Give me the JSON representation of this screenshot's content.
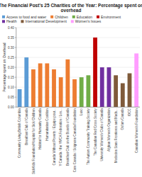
{
  "chart_data": {
    "type": "bar",
    "title": "The Financial Post's 25 Charities of the Year: Percentage spent on overhead",
    "ylabel": "Percentage spent on Overhead",
    "categories": [
      "Community Living British Columbia",
      "Breakfast Club of Canada",
      "SickKids Foundation/Hospital for Sick Children",
      "Habitat for Humanity Canada",
      "Humanitarian Coalition",
      "Canada Without Poverty / Equipe pour...",
      "Y Canada / the YMCA Federation / Les...",
      "Breakfast Club on the Boards of Canada",
      "Care Canada / Soignons Canada Foundation",
      "Luso",
      "The Autism Community Training Society",
      "The Canadian Red Cross Society",
      "University Women's Clubs of Canada",
      "Afghan Women's Organization",
      "Medecins Sans Frontieres and Mads...",
      "Oxfam Canada",
      "IOCC",
      "Canadian Women's Foundation"
    ],
    "series": [
      {
        "name": "Access to food and water",
        "color": "#5b9bd5",
        "values": [
          0.09,
          0.25,
          null,
          null,
          null,
          null,
          null,
          null,
          null,
          null,
          null,
          null,
          null,
          null,
          null,
          null,
          null,
          null
        ]
      },
      {
        "name": "Children",
        "color": "#ed7d31",
        "values": [
          null,
          null,
          0.19,
          0.22,
          0.22,
          0.19,
          0.15,
          0.24,
          0.14,
          null,
          null,
          null,
          null,
          null,
          null,
          null,
          null,
          null
        ]
      },
      {
        "name": "Education",
        "color": "#70ad47",
        "values": [
          null,
          null,
          null,
          null,
          null,
          null,
          null,
          null,
          null,
          0.15,
          0.16,
          null,
          null,
          null,
          null,
          null,
          null,
          null
        ]
      },
      {
        "name": "Environment",
        "color": "#c00000",
        "values": [
          null,
          null,
          null,
          null,
          null,
          null,
          null,
          null,
          null,
          null,
          null,
          0.35,
          null,
          null,
          null,
          null,
          null,
          null
        ]
      },
      {
        "name": "Health",
        "color": "#7030a0",
        "values": [
          null,
          null,
          null,
          null,
          null,
          null,
          null,
          null,
          null,
          null,
          null,
          null,
          0.2,
          0.2,
          null,
          null,
          null,
          null
        ]
      },
      {
        "name": "International Development",
        "color": "#7f5a3a",
        "values": [
          null,
          null,
          null,
          null,
          null,
          null,
          null,
          null,
          null,
          null,
          null,
          null,
          null,
          null,
          0.16,
          0.12,
          0.17,
          null
        ]
      },
      {
        "name": "Women's Issues",
        "color": "#ff9dff",
        "values": [
          null,
          null,
          null,
          null,
          null,
          null,
          null,
          null,
          null,
          null,
          null,
          null,
          null,
          null,
          null,
          null,
          null,
          0.27
        ]
      }
    ],
    "stacked": true,
    "ylim": [
      0,
      0.4
    ],
    "yticks": [
      {
        "value": 0.0,
        "label": "0.00"
      },
      {
        "value": 0.05,
        "label": "0.05"
      },
      {
        "value": 0.1,
        "label": "0.10"
      },
      {
        "value": 0.15,
        "label": "0.15"
      },
      {
        "value": 0.2,
        "label": "0.20"
      },
      {
        "value": 0.25,
        "label": "0.25"
      },
      {
        "value": 0.3,
        "label": "0.30"
      },
      {
        "value": 0.35,
        "label": "0.35"
      },
      {
        "value": 0.4,
        "label": "0.40"
      }
    ],
    "grid": true,
    "legend": "upper left"
  }
}
